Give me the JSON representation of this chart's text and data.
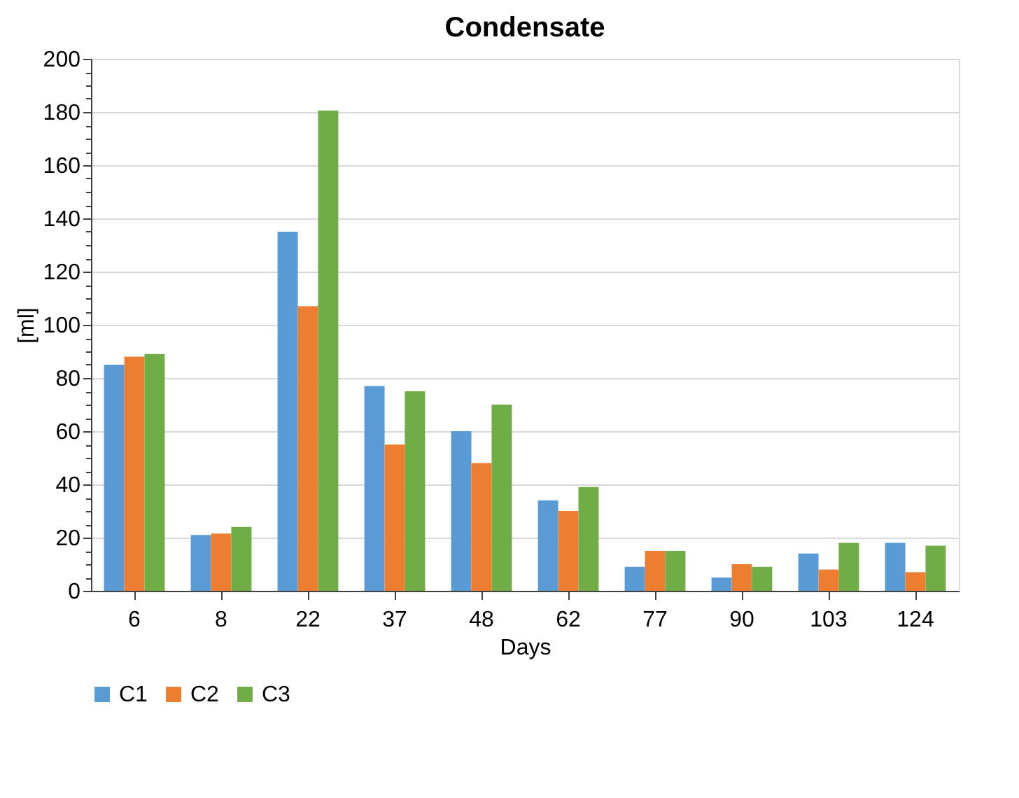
{
  "chart_data": {
    "type": "bar",
    "title": "Condensate",
    "xlabel": "Days",
    "ylabel": "[ml]",
    "categories": [
      "6",
      "8",
      "22",
      "37",
      "48",
      "62",
      "77",
      "90",
      "103",
      "124"
    ],
    "series": [
      {
        "name": "C1",
        "color": "#5b9bd5",
        "values": [
          85,
          21,
          135,
          77,
          60,
          34,
          9,
          5,
          14,
          18
        ]
      },
      {
        "name": "C2",
        "color": "#ed7d31",
        "values": [
          88,
          21.5,
          107,
          55,
          48,
          30,
          15,
          10,
          8,
          7
        ]
      },
      {
        "name": "C3",
        "color": "#70ad47",
        "values": [
          89,
          24,
          180.5,
          75,
          70,
          39,
          15,
          9,
          18,
          17
        ]
      }
    ],
    "ylim": [
      0,
      200
    ],
    "yticks": [
      0,
      {
        "value": 5,
        "label": null
      },
      {
        "value": 10,
        "label": null
      },
      {
        "value": 15,
        "label": null
      },
      20,
      {
        "value": 25,
        "label": null
      },
      {
        "value": 30,
        "label": null
      },
      {
        "value": 35,
        "label": null
      },
      40,
      {
        "value": 45,
        "label": null
      },
      {
        "value": 50,
        "label": null
      },
      {
        "value": 55,
        "label": null
      },
      60,
      {
        "value": 65,
        "label": null
      },
      {
        "value": 70,
        "label": null
      },
      {
        "value": 75,
        "label": null
      },
      80,
      {
        "value": 85,
        "label": null
      },
      {
        "value": 90,
        "label": null
      },
      {
        "value": 95,
        "label": null
      },
      100,
      {
        "value": 105,
        "label": null
      },
      {
        "value": 110,
        "label": null
      },
      {
        "value": 115,
        "label": null
      },
      120,
      {
        "value": 125,
        "label": null
      },
      {
        "value": 130,
        "label": null
      },
      {
        "value": 135,
        "label": null
      },
      140,
      {
        "value": 145,
        "label": null
      },
      {
        "value": 150,
        "label": null
      },
      {
        "value": 155,
        "label": null
      },
      160,
      {
        "value": 165,
        "label": null
      },
      {
        "value": 170,
        "label": null
      },
      {
        "value": 175,
        "label": null
      },
      180,
      {
        "value": 185,
        "label": null
      },
      {
        "value": 190,
        "label": null
      },
      {
        "value": 195,
        "label": null
      },
      200
    ],
    "grid": "y",
    "legend": "bottom"
  }
}
